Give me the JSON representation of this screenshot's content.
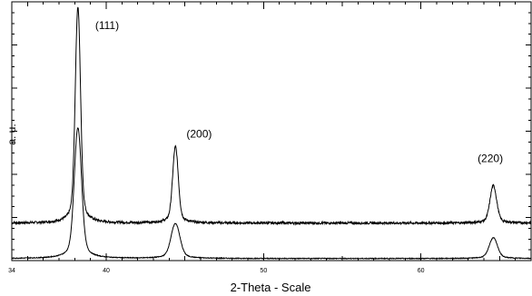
{
  "chart_data": {
    "type": "line",
    "xlabel": "2-Theta - Scale",
    "ylabel": "a. u.",
    "xlim": [
      34,
      67
    ],
    "ylim": [
      0,
      100
    ],
    "x_ticks": [
      34,
      40,
      50,
      60
    ],
    "grid": false,
    "series": [
      {
        "baseline": 14.5,
        "noise": 0.45,
        "peaks": [
          {
            "x": 38.2,
            "height": 83.5,
            "width": 0.16
          },
          {
            "x": 44.4,
            "height": 29.5,
            "width": 0.17
          },
          {
            "x": 64.6,
            "height": 14.5,
            "width": 0.2
          }
        ]
      },
      {
        "baseline": 0.8,
        "noise": 0.15,
        "peaks": [
          {
            "x": 38.2,
            "height": 50.5,
            "width": 0.22
          },
          {
            "x": 44.4,
            "height": 13.5,
            "width": 0.27
          },
          {
            "x": 64.6,
            "height": 8.0,
            "width": 0.25
          }
        ]
      }
    ],
    "annotations": [
      {
        "text": "(111)",
        "x": 39.3,
        "y": 89.5
      },
      {
        "text": "(200)",
        "x": 45.1,
        "y": 47.5
      },
      {
        "text": "(220)",
        "x": 63.6,
        "y": 38.0
      }
    ]
  }
}
